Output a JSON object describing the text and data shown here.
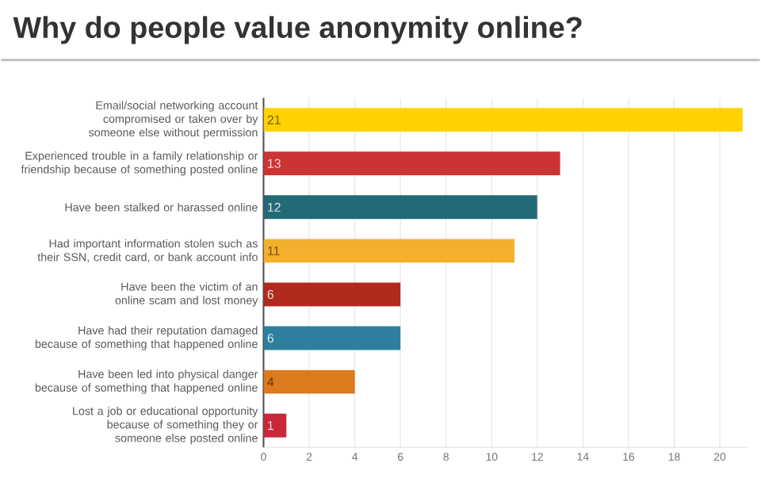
{
  "chart_data": {
    "type": "bar",
    "orientation": "horizontal",
    "title": "Why do people value anonymity online?",
    "categories": [
      "Email/social networking account compromised or taken over by someone else without permission",
      "Experienced trouble in a family relationship or friendship because of something posted online",
      "Have been stalked or harassed online",
      "Had important information stolen such as their SSN, credit card, or bank account info",
      "Have been the victim of an online scam and lost money",
      "Have had their reputation damaged because of something that happened online",
      "Have been led into physical danger because of something that happened online",
      "Lost a job or educational opportunity because of something they or someone else posted online"
    ],
    "values": [
      21,
      13,
      12,
      11,
      6,
      6,
      4,
      1
    ],
    "colors": [
      "#ffd200",
      "#cc3333",
      "#236a78",
      "#f2b02c",
      "#b02a1e",
      "#2e7f9e",
      "#dd7a1e",
      "#c8283a"
    ],
    "xlim": [
      0,
      21.2
    ],
    "xticks": [
      0,
      2,
      4,
      6,
      8,
      10,
      12,
      14,
      16,
      18,
      20
    ],
    "grid": "x",
    "data_labels": true
  }
}
